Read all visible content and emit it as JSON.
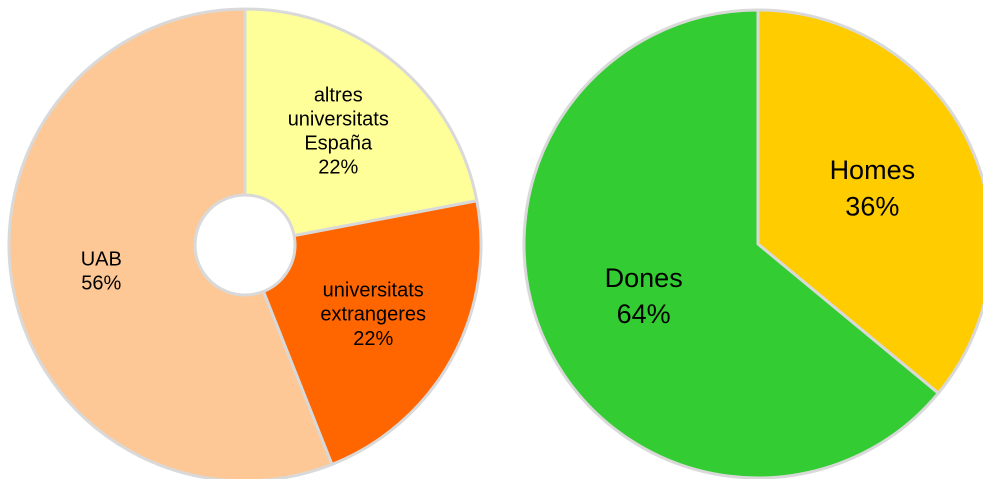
{
  "chart_data": [
    {
      "type": "donut",
      "categories": [
        "altres universitats España",
        "universitats extrangeres",
        "UAB"
      ],
      "values": [
        22,
        22,
        56
      ],
      "value_labels": [
        "22%",
        "22%",
        "56%"
      ],
      "colors": [
        "#ffff99",
        "#ff6600",
        "#fdc896"
      ]
    },
    {
      "type": "pie",
      "categories": [
        "Homes",
        "Dones"
      ],
      "values": [
        36,
        64
      ],
      "value_labels": [
        "36%",
        "64%"
      ],
      "colors": [
        "#ffcc00",
        "#33cc33"
      ]
    }
  ]
}
